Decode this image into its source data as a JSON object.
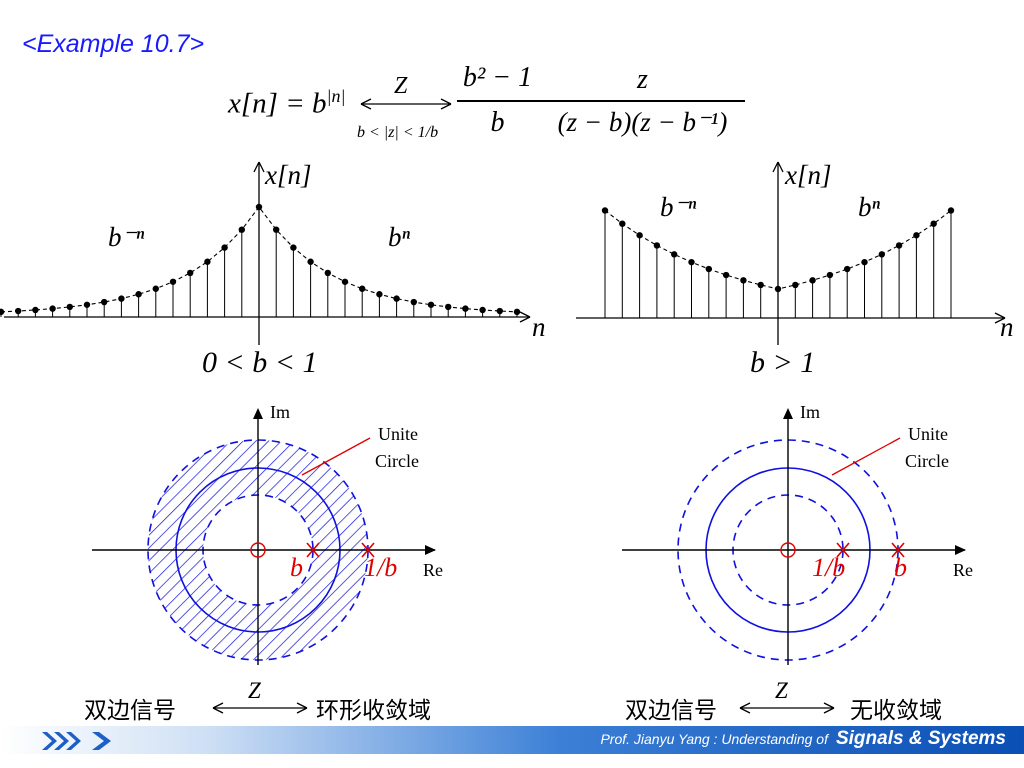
{
  "slide": {
    "title": "<Example 10.7>",
    "formula": {
      "lhs": "x[n] = b",
      "lhs_exp": "|n|",
      "transform_label": "Z",
      "roc": "b < |z| < 1/b",
      "frac1_num": "b² − 1",
      "frac1_den": "b",
      "frac2_num": "z",
      "frac2_den": "(z − b)(z − b⁻¹)"
    },
    "plot_left": {
      "y_label": "x[n]",
      "x_label": "n",
      "left_expr": "b⁻ⁿ",
      "right_expr": "bⁿ",
      "condition": "0 < b < 1"
    },
    "plot_right": {
      "y_label": "x[n]",
      "x_label": "n",
      "left_expr": "b⁻ⁿ",
      "right_expr": "bⁿ",
      "condition": "b > 1"
    },
    "zplane_left": {
      "im_label": "Im",
      "re_label": "Re",
      "unit_circle_label_1": "Unite",
      "unit_circle_label_2": "Circle",
      "pole1_label": "b",
      "pole2_label": "1/b"
    },
    "zplane_right": {
      "im_label": "Im",
      "re_label": "Re",
      "unit_circle_label_1": "Unite",
      "unit_circle_label_2": "Circle",
      "pole1_label": "1/b",
      "pole2_label": "b"
    },
    "caption_left": {
      "signal": "双边信号",
      "z": "Z",
      "result": "环形收敛域"
    },
    "caption_right": {
      "signal": "双边信号",
      "z": "Z",
      "result": "无收敛域"
    },
    "footer": {
      "prof": "Prof.  Jianyu Yang :  Understanding of",
      "brand": "Signals & Systems"
    },
    "colors": {
      "title": "#1a1aff",
      "roc_blue": "#1010e0",
      "pole_red": "#e00000",
      "footer_blue": "#0a4fb4"
    }
  }
}
